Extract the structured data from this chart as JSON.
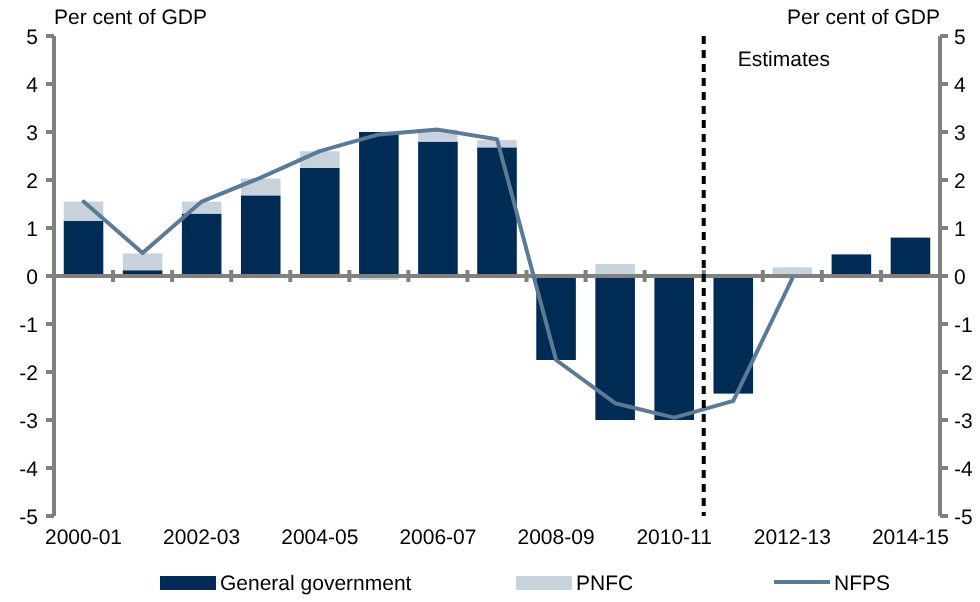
{
  "chart_data": {
    "type": "bar",
    "stacked": true,
    "categories": [
      "2000-01",
      null,
      "2002-03",
      null,
      "2004-05",
      null,
      "2006-07",
      null,
      "2008-09",
      null,
      "2010-11",
      null,
      "2012-13",
      null,
      "2014-15"
    ],
    "series": [
      {
        "name": "General government",
        "color": "#002b55",
        "values": [
          1.15,
          0.12,
          1.3,
          1.68,
          2.25,
          3.0,
          2.8,
          2.68,
          -1.75,
          -3.0,
          -3.0,
          -2.45,
          null,
          0.45,
          0.8
        ]
      },
      {
        "name": "PNFC",
        "color": "#c8d2dc",
        "values": [
          0.4,
          0.35,
          0.25,
          0.35,
          0.35,
          -0.08,
          0.25,
          0.15,
          0,
          0.25,
          0,
          0,
          0.18,
          0,
          0
        ]
      },
      {
        "name": "NFPS",
        "type": "line",
        "color": "#5a7a96",
        "values": [
          1.55,
          0.48,
          1.55,
          2.05,
          2.6,
          2.95,
          3.05,
          2.85,
          -1.75,
          -2.65,
          -2.95,
          -2.6,
          -0.05,
          null,
          null
        ]
      }
    ],
    "ylabel": "Per cent of GDP",
    "y2label": "Per cent of GDP",
    "ylim": [
      -5,
      5
    ],
    "yticks": [
      -5,
      -4,
      -3,
      -2,
      -1,
      0,
      1,
      2,
      3,
      4,
      5
    ],
    "y2lim": [
      -5,
      5
    ],
    "y2ticks": [
      -5,
      -4,
      -3,
      -2,
      -1,
      0,
      1,
      2,
      3,
      4,
      5
    ],
    "ref_lines": [
      {
        "axis": "x",
        "value": "2010-11",
        "label": "Estimates",
        "color": "#000000",
        "line_style": "dashed"
      }
    ],
    "legend": "bottom",
    "grid": false,
    "marker": "none"
  }
}
